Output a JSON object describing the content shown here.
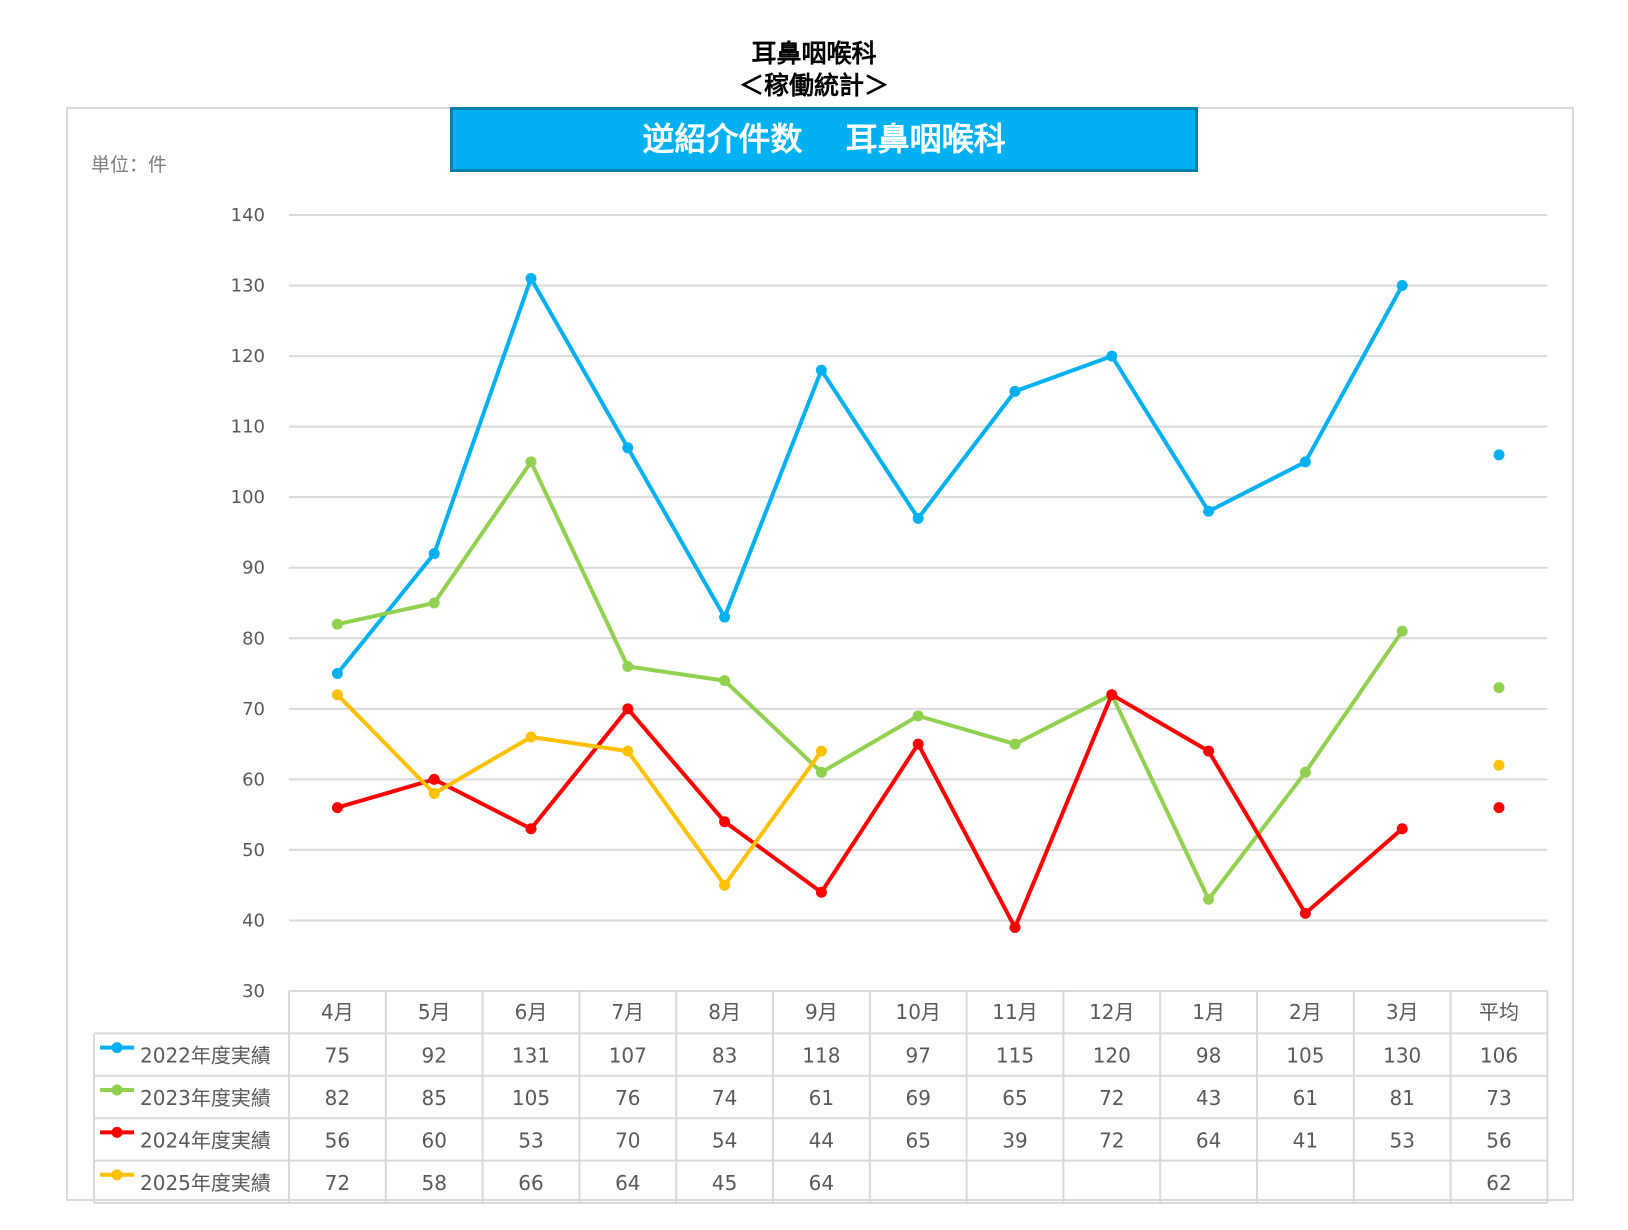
{
  "header": {
    "title_line1": "耳鼻咽喉科",
    "title_line2": "＜稼働統計＞"
  },
  "chart_data": {
    "type": "line",
    "title": "逆紹介件数　 耳鼻咽喉科",
    "unit_label": "単位：件",
    "categories": [
      "4月",
      "5月",
      "6月",
      "7月",
      "8月",
      "9月",
      "10月",
      "11月",
      "12月",
      "1月",
      "2月",
      "3月",
      "平均"
    ],
    "ylim": [
      30,
      140
    ],
    "yticks": [
      30,
      40,
      50,
      60,
      70,
      80,
      90,
      100,
      110,
      120,
      130,
      140
    ],
    "grid": true,
    "legend": "data-table",
    "series": [
      {
        "name": "2022年度実績",
        "color": "#00b0f0",
        "values": [
          75,
          92,
          131,
          107,
          83,
          118,
          97,
          115,
          120,
          98,
          105,
          130,
          106
        ]
      },
      {
        "name": "2023年度実績",
        "color": "#92d050",
        "values": [
          82,
          85,
          105,
          76,
          74,
          61,
          69,
          65,
          72,
          43,
          61,
          81,
          73
        ]
      },
      {
        "name": "2024年度実績",
        "color": "#ff0000",
        "values": [
          56,
          60,
          53,
          70,
          54,
          44,
          65,
          39,
          72,
          64,
          41,
          53,
          56
        ]
      },
      {
        "name": "2025年度実績",
        "color": "#ffc000",
        "values": [
          72,
          58,
          66,
          64,
          45,
          64,
          null,
          null,
          null,
          null,
          null,
          null,
          62
        ]
      }
    ]
  }
}
